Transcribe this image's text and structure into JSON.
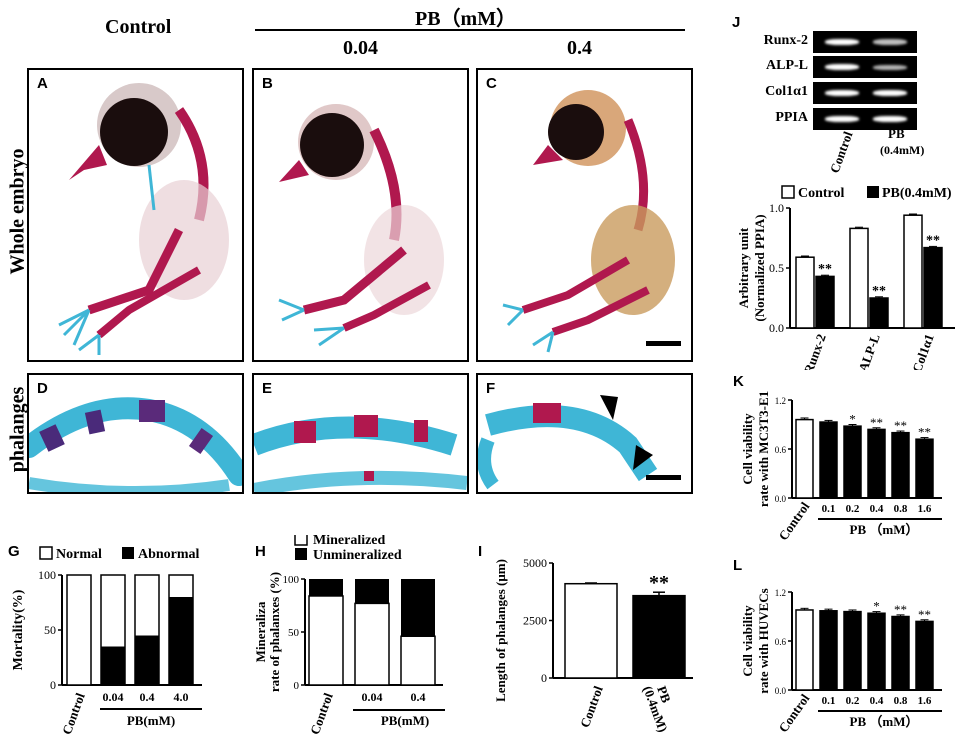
{
  "header": {
    "control": "Control",
    "pb_title": "PB（mM）",
    "dose_low": "0.04",
    "dose_high": "0.4"
  },
  "row_labels": {
    "whole": "Whole embryo",
    "phalanges": "phalanges"
  },
  "panels": {
    "A": "A",
    "B": "B",
    "C": "C",
    "D": "D",
    "E": "E",
    "F": "F"
  },
  "colors": {
    "red_stain": "#b0184e",
    "blue_stain": "#3fb6d6",
    "black": "#000000",
    "white": "#ffffff"
  },
  "gel": {
    "label": "J",
    "rows": [
      "Runx-2",
      "ALP-L",
      "Col1α1",
      "PPIA"
    ],
    "lanes": [
      "Control",
      "PB\n(0.4mM)"
    ],
    "lane_control": "Control",
    "lane_pb_line1": "PB",
    "lane_pb_line2": "(0.4mM)"
  },
  "chart_data": [
    {
      "id": "G",
      "type": "bar",
      "stacked": true,
      "ylabel": "Mortality(%)",
      "categories": [
        "Control",
        "0.04",
        "0.4",
        "4.0"
      ],
      "group_label": "PB(mM)",
      "legend": [
        "Normal",
        "Abnormal"
      ],
      "ylim": [
        0,
        100
      ],
      "yticks": [
        "0",
        "50",
        "100"
      ],
      "series": [
        {
          "name": "Abnormal",
          "values": [
            0,
            35,
            45,
            80
          ]
        },
        {
          "name": "Normal",
          "values": [
            100,
            65,
            55,
            20
          ]
        }
      ]
    },
    {
      "id": "H",
      "type": "bar",
      "stacked": true,
      "ylabel_line1": "Mineraliza",
      "ylabel_line2": "rate of phalanxes (%)",
      "categories": [
        "Control",
        "0.04",
        "0.4"
      ],
      "group_label": "PB(mM)",
      "legend": [
        "Mineralized",
        "Unmineralized"
      ],
      "ylim": [
        0,
        100
      ],
      "yticks": [
        "0",
        "50",
        "100"
      ],
      "series": [
        {
          "name": "Mineralized",
          "values": [
            84,
            77,
            46
          ]
        },
        {
          "name": "Unmineralized",
          "values": [
            16,
            23,
            54
          ]
        }
      ]
    },
    {
      "id": "I",
      "type": "bar",
      "ylabel": "Length of phalanges (μm)",
      "categories": [
        "Control",
        "PB\n(0.4mM)"
      ],
      "cat_control": "Control",
      "cat_pb1": "PB",
      "cat_pb2": "(0.4mM)",
      "values": [
        4100,
        3580
      ],
      "errors": [
        30,
        150
      ],
      "significance": [
        "",
        "**"
      ],
      "ylim": [
        0,
        5000
      ],
      "yticks": [
        "0",
        "2500",
        "5000"
      ]
    },
    {
      "id": "J",
      "type": "bar",
      "ylabel_line1": "Arbitrary  unit",
      "ylabel_line2": "(Normalized PPIA)",
      "categories": [
        "Runx-2",
        "ALP-L",
        "Col1α1"
      ],
      "legend": [
        "Control",
        "PB(0.4mM)"
      ],
      "ylim": [
        0,
        1.0
      ],
      "yticks": [
        "0.0",
        "0.5",
        "1.0"
      ],
      "series": [
        {
          "name": "Control",
          "values": [
            0.59,
            0.83,
            0.94
          ],
          "errors": [
            0.01,
            0.01,
            0.01
          ]
        },
        {
          "name": "PB(0.4mM)",
          "values": [
            0.43,
            0.25,
            0.67
          ],
          "errors": [
            0.01,
            0.01,
            0.01
          ],
          "significance": [
            "**",
            "**",
            "**"
          ]
        }
      ]
    },
    {
      "id": "K",
      "type": "bar",
      "ylabel_line1": "Cell viability",
      "ylabel_line2": "rate with MC3T3-E1",
      "categories": [
        "Control",
        "0.1",
        "0.2",
        "0.4",
        "0.8",
        "1.6"
      ],
      "group_label": "PB （mM）",
      "values": [
        0.96,
        0.93,
        0.88,
        0.84,
        0.8,
        0.72
      ],
      "errors": [
        0.02,
        0.02,
        0.02,
        0.02,
        0.02,
        0.02
      ],
      "significance": [
        "",
        "",
        "*",
        "**",
        "**",
        "**"
      ],
      "ylim": [
        0,
        1.2
      ],
      "yticks": [
        "0.0",
        "0.6",
        "1.2"
      ]
    },
    {
      "id": "L",
      "type": "bar",
      "ylabel_line1": "Cell viability",
      "ylabel_line2": "rate with HUVECs",
      "categories": [
        "Control",
        "0.1",
        "0.2",
        "0.4",
        "0.8",
        "1.6"
      ],
      "group_label": "PB （mM）",
      "values": [
        0.98,
        0.97,
        0.96,
        0.94,
        0.9,
        0.84
      ],
      "errors": [
        0.02,
        0.02,
        0.02,
        0.02,
        0.02,
        0.02
      ],
      "significance": [
        "",
        "",
        "",
        "*",
        "**",
        "**"
      ],
      "ylim": [
        0,
        1.2
      ],
      "yticks": [
        "0.0",
        "0.6",
        "1.2"
      ]
    }
  ]
}
